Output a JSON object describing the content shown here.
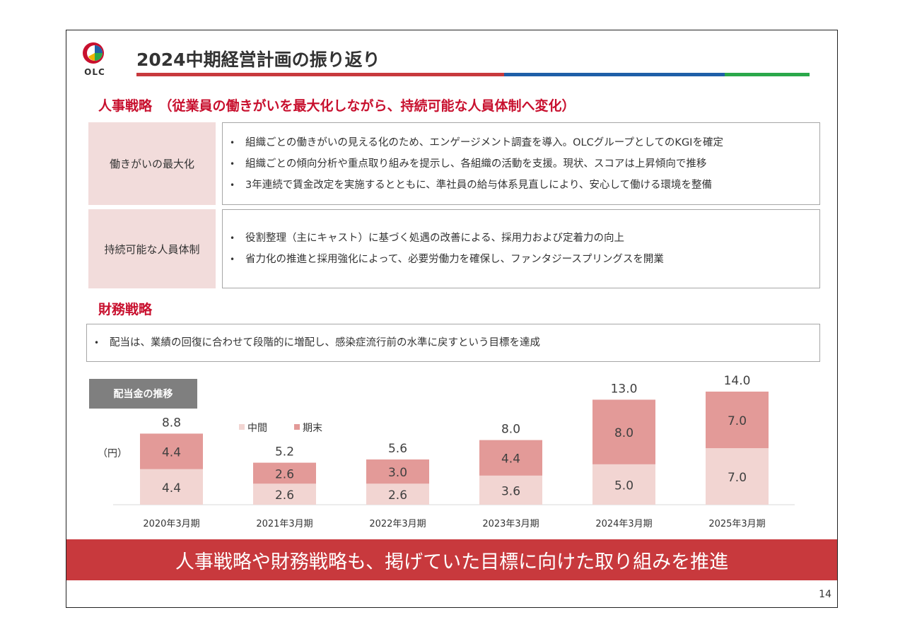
{
  "header": {
    "logo_text": "OLC",
    "title": "2024中期経営計画の振り返り",
    "accent_colors": [
      "#c8393d",
      "#1f5fa8",
      "#2aa84a"
    ]
  },
  "hr_strategy": {
    "heading": "人事戦略　（従業員の働きがいを最大化しながら、持続可能な人員体制へ変化）",
    "rows": [
      {
        "label": "働きがいの最大化",
        "bullets": [
          "組織ごとの働きがいの見える化のため、エンゲージメント調査を導入。OLCグループとしてのKGIを確定",
          "組織ごとの傾向分析や重点取り組みを提示し、各組織の活動を支援。現状、スコアは上昇傾向で推移",
          "3年連続で賃金改定を実施するとともに、準社員の給与体系見直しにより、安心して働ける環境を整備"
        ]
      },
      {
        "label": "持続可能な人員体制",
        "bullets": [
          "役割整理（主にキャスト）に基づく処遇の改善による、採用力および定着力の向上",
          "省力化の推進と採用強化によって、必要労働力を確保し、ファンタジースプリングスを開業"
        ]
      }
    ]
  },
  "financial_strategy": {
    "heading": "財務戦略",
    "bullets": [
      "配当は、業績の回復に合わせて段階的に増配し、感染症流行前の水準に戻すという目標を達成"
    ]
  },
  "chart_tag": "配当金の推移",
  "chart_data": {
    "type": "bar",
    "stacked": true,
    "unit_label": "（円）",
    "categories": [
      "2020年3月期",
      "2021年3月期",
      "2022年3月期",
      "2023年3月期",
      "2024年3月期",
      "2025年3月期"
    ],
    "series": [
      {
        "name": "中間",
        "values": [
          4.4,
          2.6,
          2.6,
          3.6,
          5.0,
          7.0
        ],
        "color": "#f2d5d2"
      },
      {
        "name": "期末",
        "values": [
          4.4,
          2.6,
          3.0,
          4.4,
          8.0,
          7.0
        ],
        "color": "#e39a98"
      }
    ],
    "totals": [
      8.8,
      5.2,
      5.6,
      8.0,
      13.0,
      14.0
    ],
    "legend_position": "top-left",
    "ylim": [
      0,
      14.0
    ]
  },
  "banner": "人事戦略や財務戦略も、掲げていた目標に向けた取り組みを推進",
  "page_number": "14"
}
